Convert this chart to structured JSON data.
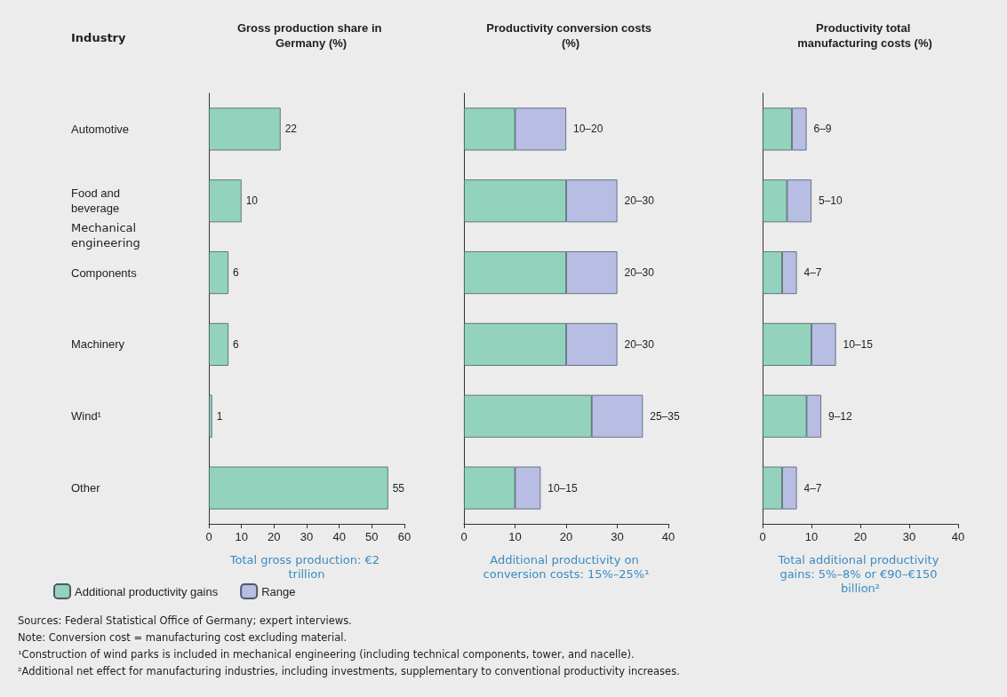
{
  "chart_data": [
    {
      "type": "bar",
      "orientation": "horizontal",
      "title": "Gross production share in Germany (%)",
      "ylabel": "Industry",
      "xlabel": "Total gross production: €2 trillion",
      "categories": [
        "Automotive",
        "Food and beverage",
        "Components",
        "Machinery",
        "Wind¹",
        "Other"
      ],
      "values": [
        22,
        10,
        6,
        6,
        1,
        55
      ],
      "color": "#93d3bd",
      "data_labels": true,
      "xlim": [
        0,
        60
      ],
      "xticks": [
        0,
        10,
        20,
        30,
        40,
        50,
        60
      ],
      "annotations": [
        "Mechanical engineering",
        "Sources: Federal Statistical Office of Germany; expert interviews.",
        "Note: Conversion cost = manufacturing cost excluding material.",
        "¹Construction of wind parks is included in mechanical engineering (including technical components, tower, and nacelle).",
        "²Additional net effect for manufacturing industries, including investments, supplementary to conventional productivity increases."
      ]
    },
    {
      "type": "bar",
      "orientation": "horizontal",
      "stacked": true,
      "title": "Productivity conversion costs (%)",
      "xlabel": "Additional productivity on conversion costs: 15%–25%¹",
      "categories": [
        "Automotive",
        "Food and beverage",
        "Components",
        "Machinery",
        "Wind¹",
        "Other"
      ],
      "xlim": [
        0,
        40
      ],
      "xticks": [
        0,
        10,
        20,
        30,
        40
      ],
      "tick_labels": "x",
      "legend": "bottom left",
      "series": [
        {
          "name": "Additional productivity gains",
          "color": "#93d3bd",
          "values": [
            10,
            20,
            20,
            20,
            25,
            10
          ]
        },
        {
          "name": "Range",
          "color": "#b8bde3",
          "values": [
            10,
            10,
            10,
            10,
            10,
            5
          ],
          "value_labels": [
            "10–20",
            "20–30",
            "20–30",
            "20–30",
            "25–35",
            "10–15"
          ]
        }
      ]
    },
    {
      "type": "bar",
      "orientation": "horizontal",
      "stacked": true,
      "title": "Productivity total manufacturing costs (%)",
      "xlabel": "Total additional productivity gains: 5%–8% or €90–€150 billion²",
      "categories": [
        "Automotive",
        "Food and beverage",
        "Components",
        "Machinery",
        "Wind¹",
        "Other"
      ],
      "xlim": [
        0,
        40
      ],
      "xticks": [
        0,
        10,
        20,
        30,
        40
      ],
      "tick_labels": "x",
      "series": [
        {
          "color": "#93d3bd",
          "values": [
            6,
            5,
            4,
            10,
            9,
            4
          ]
        },
        {
          "color": "#b8bde3",
          "values": [
            3,
            5,
            3,
            5,
            3,
            3
          ],
          "value_labels": [
            "6–9",
            "5–10",
            "4–7",
            "10–15",
            "9–12",
            "4–7"
          ]
        }
      ]
    }
  ]
}
